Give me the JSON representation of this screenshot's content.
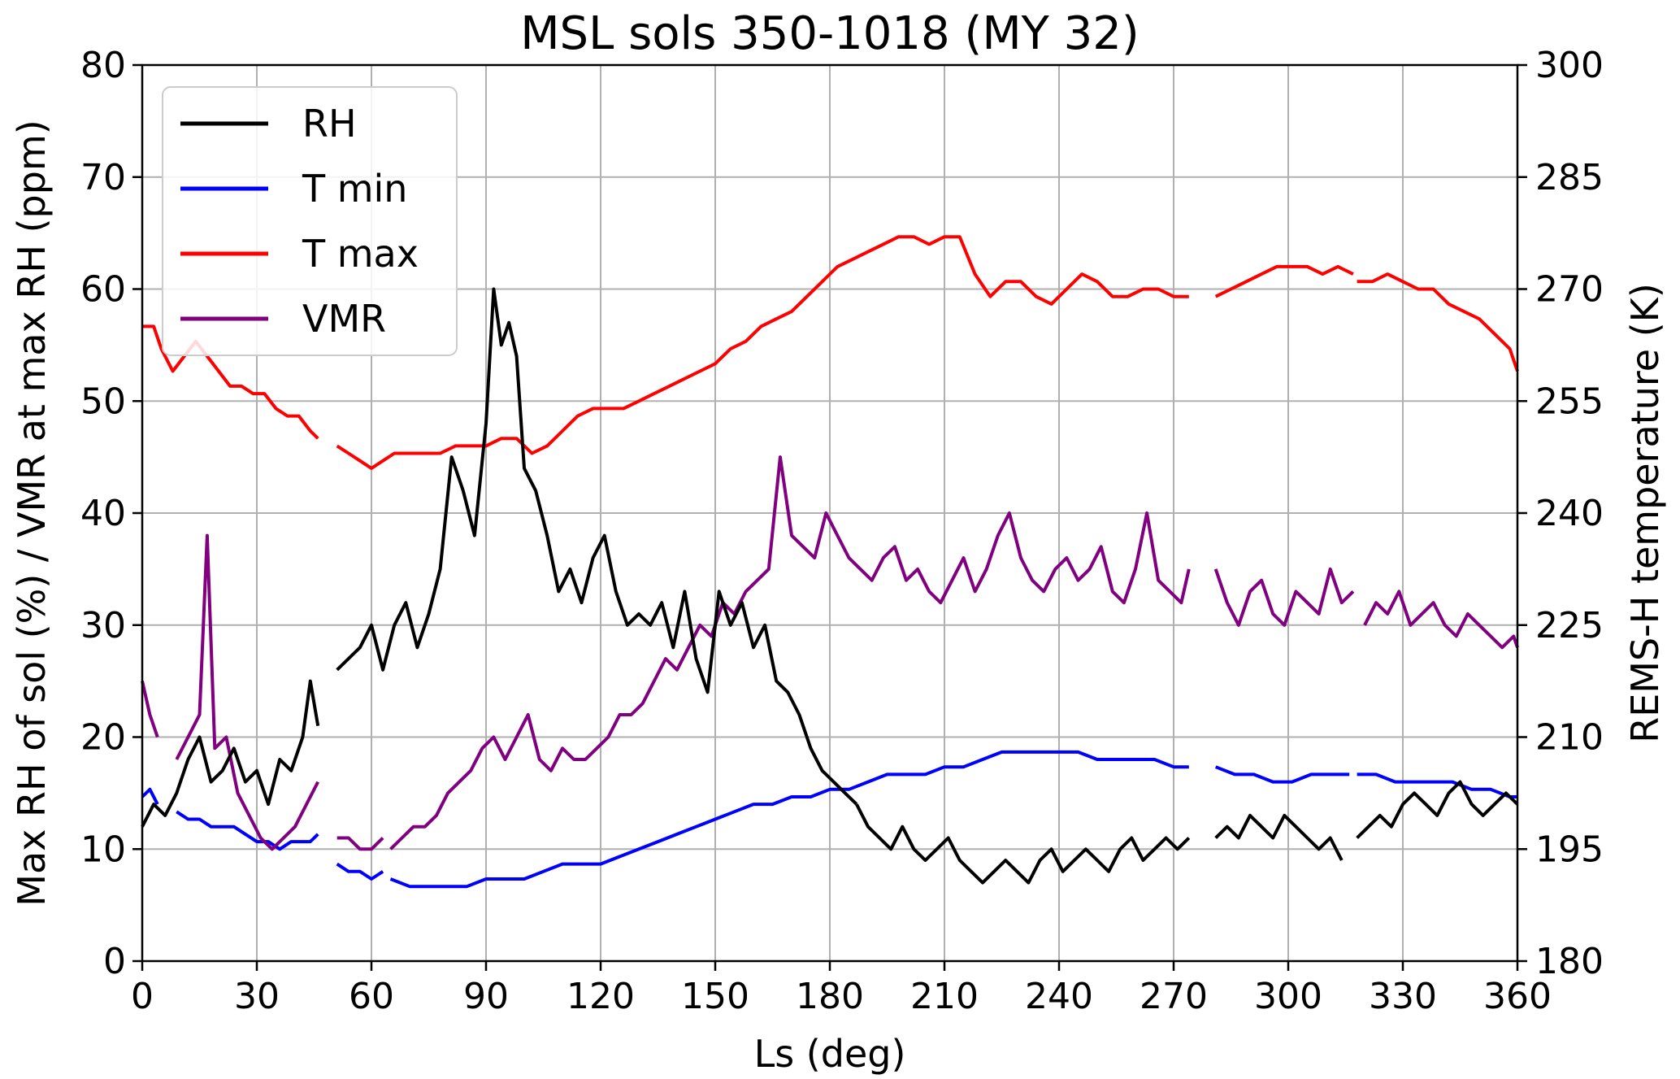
{
  "chart_data": {
    "type": "line",
    "title": "MSL sols 350-1018 (MY 32)",
    "xlabel": "Ls (deg)",
    "ylabel_left": "Max RH of sol (%) / VMR at max RH (ppm)",
    "ylabel_right": "REMS-H temperature (K)",
    "xlim": [
      0,
      360
    ],
    "ylim_left": [
      0,
      80
    ],
    "ylim_right": [
      180,
      300
    ],
    "x_ticks": [
      0,
      30,
      60,
      90,
      120,
      150,
      180,
      210,
      240,
      270,
      300,
      330,
      360
    ],
    "y_ticks_left": [
      0,
      10,
      20,
      30,
      40,
      50,
      60,
      70,
      80
    ],
    "y_ticks_right": [
      180,
      195,
      210,
      225,
      240,
      255,
      270,
      285,
      300
    ],
    "grid": true,
    "legend_position": "top-left",
    "colors": {
      "RH": "#000000",
      "T min": "#0000ff",
      "T max": "#ff0000",
      "VMR": "#800080"
    },
    "series": [
      {
        "name": "RH",
        "axis": "left",
        "segments": [
          {
            "x": [
              0,
              3,
              6,
              9,
              12,
              15,
              18,
              21,
              24,
              27,
              30,
              33,
              36,
              39,
              42,
              44,
              46
            ],
            "y": [
              12,
              14,
              13,
              15,
              18,
              20,
              16,
              17,
              19,
              16,
              17,
              14,
              18,
              17,
              20,
              25,
              21
            ]
          },
          {
            "x": [
              51,
              54,
              57,
              60,
              63,
              66,
              69,
              72,
              75,
              78,
              81,
              84,
              87,
              90,
              92,
              94,
              96,
              98,
              100,
              103,
              106,
              109,
              112,
              115,
              118,
              121,
              124,
              127,
              130,
              133,
              136,
              139,
              142,
              145,
              148,
              151,
              154,
              157,
              160,
              163,
              166,
              169,
              172,
              175,
              178,
              181,
              184,
              187
            ],
            "y": [
              26,
              27,
              28,
              30,
              26,
              30,
              32,
              28,
              31,
              35,
              45,
              42,
              38,
              48,
              60,
              55,
              57,
              54,
              44,
              42,
              38,
              33,
              35,
              32,
              36,
              38,
              33,
              30,
              31,
              30,
              32,
              28,
              33,
              27,
              24,
              33,
              30,
              32,
              28,
              30,
              25,
              24,
              22,
              19,
              17,
              16,
              15,
              14
            ]
          },
          {
            "x": [
              187,
              190,
              193,
              196,
              199,
              202,
              205,
              208,
              211,
              214,
              217,
              220,
              223,
              226,
              229,
              232,
              235,
              238,
              241,
              244,
              247,
              250,
              253,
              256,
              259,
              262,
              265,
              268,
              271,
              274
            ],
            "y": [
              14,
              12,
              11,
              10,
              12,
              10,
              9,
              10,
              11,
              9,
              8,
              7,
              8,
              9,
              8,
              7,
              9,
              10,
              8,
              9,
              10,
              9,
              8,
              10,
              11,
              9,
              10,
              11,
              10,
              11
            ]
          },
          {
            "x": [
              281,
              284,
              287,
              290,
              293,
              296,
              299,
              302,
              305,
              308,
              311,
              314
            ],
            "y": [
              11,
              12,
              11,
              13,
              12,
              11,
              13,
              12,
              11,
              10,
              11,
              9
            ]
          },
          {
            "x": [
              318,
              321,
              324,
              327,
              330,
              333,
              336,
              339,
              342,
              345,
              348,
              351,
              354,
              357,
              360
            ],
            "y": [
              11,
              12,
              13,
              12,
              14,
              15,
              14,
              13,
              15,
              16,
              14,
              13,
              14,
              15,
              14
            ]
          }
        ]
      },
      {
        "name": "T min",
        "axis": "right",
        "segments": [
          {
            "x": [
              0,
              2,
              4
            ],
            "y": [
              202,
              203,
              201
            ]
          },
          {
            "x": [
              9,
              12,
              15,
              18,
              21,
              24,
              27,
              30,
              33,
              36,
              39,
              42,
              44,
              46
            ],
            "y": [
              200,
              199,
              199,
              198,
              198,
              198,
              197,
              196,
              196,
              195,
              196,
              196,
              196,
              197
            ]
          },
          {
            "x": [
              51,
              54,
              57,
              60,
              63
            ],
            "y": [
              193,
              192,
              192,
              191,
              192
            ]
          },
          {
            "x": [
              65,
              70,
              75,
              80,
              85,
              90,
              95,
              100,
              105,
              110,
              115,
              120,
              125,
              130,
              135,
              140,
              145,
              150,
              155,
              160,
              165,
              170,
              175,
              180,
              185,
              190,
              195,
              200,
              205,
              210,
              215,
              220,
              225,
              230,
              235,
              240,
              245,
              250,
              255,
              260,
              265,
              270,
              274
            ],
            "y": [
              191,
              190,
              190,
              190,
              190,
              191,
              191,
              191,
              192,
              193,
              193,
              193,
              194,
              195,
              196,
              197,
              198,
              199,
              200,
              201,
              201,
              202,
              202,
              203,
              203,
              204,
              205,
              205,
              205,
              206,
              206,
              207,
              208,
              208,
              208,
              208,
              208,
              207,
              207,
              207,
              207,
              206,
              206
            ]
          },
          {
            "x": [
              281,
              286,
              291,
              296,
              301,
              306,
              311,
              316
            ],
            "y": [
              206,
              205,
              205,
              204,
              204,
              205,
              205,
              205
            ]
          },
          {
            "x": [
              318,
              323,
              328,
              333,
              338,
              343,
              348,
              353,
              358,
              360
            ],
            "y": [
              205,
              205,
              204,
              204,
              204,
              204,
              203,
              203,
              202,
              202
            ]
          }
        ]
      },
      {
        "name": "T max",
        "axis": "right",
        "segments": [
          {
            "x": [
              0,
              3,
              5,
              8,
              11,
              14,
              17,
              20,
              23,
              26,
              29,
              32,
              35,
              38,
              41,
              44,
              46
            ],
            "y": [
              265,
              265,
              262,
              259,
              261,
              263,
              261,
              259,
              257,
              257,
              256,
              256,
              254,
              253,
              253,
              251,
              250
            ]
          },
          {
            "x": [
              51,
              54,
              57,
              60,
              63,
              66,
              70,
              74,
              78,
              82,
              86,
              90,
              94,
              98,
              102,
              106,
              110,
              114,
              118,
              122,
              126,
              130,
              134,
              138,
              142,
              146,
              150,
              154,
              158,
              162,
              166,
              170,
              174,
              178,
              182,
              186,
              190,
              194,
              198,
              202,
              206,
              210,
              214,
              218,
              222,
              226,
              230,
              234,
              238,
              242,
              246,
              250,
              254,
              258,
              262,
              266,
              270,
              274
            ],
            "y": [
              249,
              248,
              247,
              246,
              247,
              248,
              248,
              248,
              248,
              249,
              249,
              249,
              250,
              250,
              248,
              249,
              251,
              253,
              254,
              254,
              254,
              255,
              256,
              257,
              258,
              259,
              260,
              262,
              263,
              265,
              266,
              267,
              269,
              271,
              273,
              274,
              275,
              276,
              277,
              277,
              276,
              277,
              277,
              272,
              269,
              271,
              271,
              269,
              268,
              270,
              272,
              271,
              269,
              269,
              270,
              270,
              269,
              269
            ]
          },
          {
            "x": [
              281,
              285,
              289,
              293,
              297,
              301,
              305,
              309,
              313,
              317
            ],
            "y": [
              269,
              270,
              271,
              272,
              273,
              273,
              273,
              272,
              273,
              272
            ]
          },
          {
            "x": [
              318,
              322,
              326,
              330,
              334,
              338,
              342,
              346,
              350,
              354,
              358,
              360
            ],
            "y": [
              271,
              271,
              272,
              271,
              270,
              270,
              268,
              267,
              266,
              264,
              262,
              259
            ]
          }
        ]
      },
      {
        "name": "VMR",
        "axis": "left",
        "segments": [
          {
            "x": [
              0,
              2,
              4
            ],
            "y": [
              25,
              22,
              20
            ]
          },
          {
            "x": [
              9,
              12,
              15,
              17,
              19,
              22,
              25,
              28,
              31,
              34,
              37,
              40,
              43,
              46
            ],
            "y": [
              18,
              20,
              22,
              38,
              19,
              20,
              15,
              13,
              11,
              10,
              11,
              12,
              14,
              16
            ]
          },
          {
            "x": [
              51,
              54,
              57,
              60,
              63
            ],
            "y": [
              11,
              11,
              10,
              10,
              11
            ]
          },
          {
            "x": [
              65,
              68,
              71,
              74,
              77,
              80,
              83,
              86,
              89,
              92,
              95,
              98,
              101,
              104,
              107,
              110,
              113,
              116,
              119,
              122,
              125,
              128,
              131,
              134,
              137,
              140,
              143,
              146,
              149,
              152,
              155,
              158,
              161,
              164,
              167,
              170,
              173,
              176,
              179,
              182,
              185,
              188,
              191,
              194,
              197,
              200,
              203,
              206,
              209,
              212,
              215,
              218,
              221,
              224,
              227,
              230,
              233,
              236,
              239,
              242,
              245,
              248,
              251,
              254,
              257,
              260,
              263,
              266,
              269,
              272,
              274
            ],
            "y": [
              10,
              11,
              12,
              12,
              13,
              15,
              16,
              17,
              19,
              20,
              18,
              20,
              22,
              18,
              17,
              19,
              18,
              18,
              19,
              20,
              22,
              22,
              23,
              25,
              27,
              26,
              28,
              30,
              29,
              32,
              31,
              33,
              34,
              35,
              45,
              38,
              37,
              36,
              40,
              38,
              36,
              35,
              34,
              36,
              37,
              34,
              35,
              33,
              32,
              34,
              36,
              33,
              35,
              38,
              40,
              36,
              34,
              33,
              35,
              36,
              34,
              35,
              37,
              33,
              32,
              35,
              40,
              34,
              33,
              32,
              35
            ]
          },
          {
            "x": [
              281,
              284,
              287,
              290,
              293,
              296,
              299,
              302,
              305,
              308,
              311,
              314,
              317
            ],
            "y": [
              35,
              32,
              30,
              33,
              34,
              31,
              30,
              33,
              32,
              31,
              35,
              32,
              33
            ]
          },
          {
            "x": [
              320,
              323,
              326,
              329,
              332,
              335,
              338,
              341,
              344,
              347,
              350,
              353,
              356,
              359,
              360
            ],
            "y": [
              30,
              32,
              31,
              33,
              30,
              31,
              32,
              30,
              29,
              31,
              30,
              29,
              28,
              29,
              28
            ]
          }
        ]
      }
    ]
  }
}
